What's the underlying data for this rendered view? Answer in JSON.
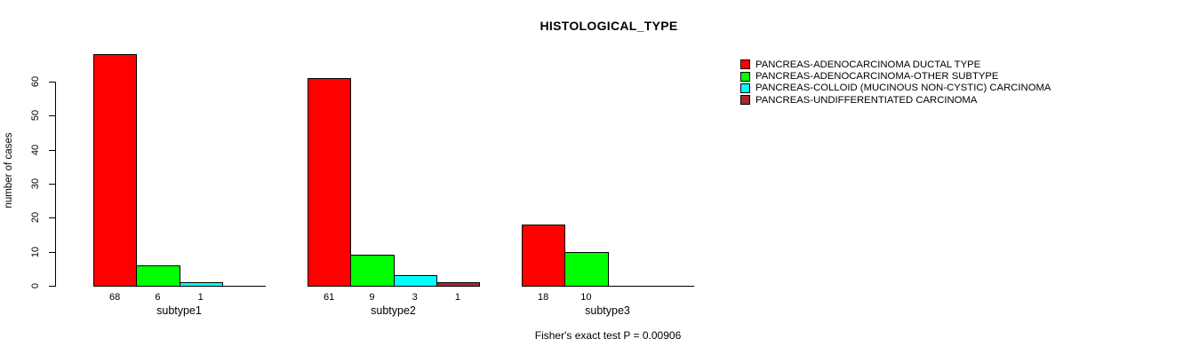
{
  "chart_data": {
    "type": "bar",
    "title": "HISTOLOGICAL_TYPE",
    "ylabel": "number of cases",
    "ylim": [
      0,
      60
    ],
    "yticks": [
      0,
      10,
      20,
      30,
      40,
      50,
      60
    ],
    "grid": false,
    "legend_position": "right",
    "categories": [
      "subtype1",
      "subtype2",
      "subtype3"
    ],
    "series": [
      {
        "name": "PANCREAS-ADENOCARCINOMA DUCTAL TYPE",
        "color": "#ff0000",
        "values": [
          68,
          61,
          18
        ]
      },
      {
        "name": "PANCREAS-ADENOCARCINOMA-OTHER SUBTYPE",
        "color": "#00ff00",
        "values": [
          6,
          9,
          10
        ]
      },
      {
        "name": "PANCREAS-COLLOID (MUCINOUS NON-CYSTIC) CARCINOMA",
        "color": "#00ffff",
        "values": [
          1,
          3,
          0
        ]
      },
      {
        "name": "PANCREAS-UNDIFFERENTIATED CARCINOMA",
        "color": "#a52a2a",
        "values": [
          0,
          1,
          0
        ]
      }
    ],
    "annotation": "Fisher's exact test P = 0.00906"
  }
}
